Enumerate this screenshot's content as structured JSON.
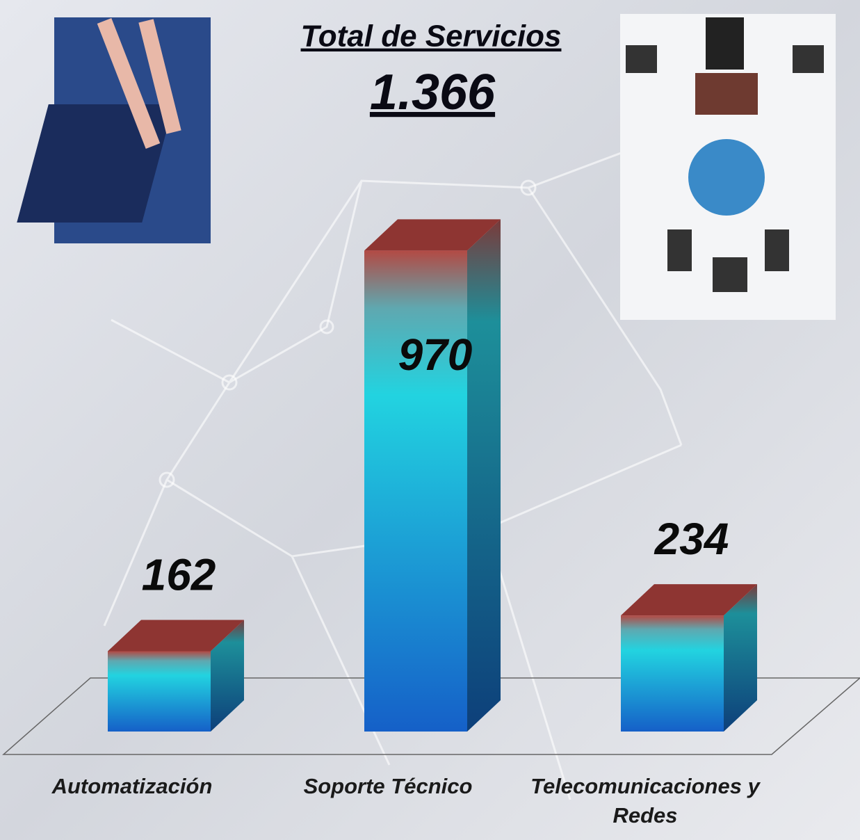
{
  "chart_data": {
    "type": "bar3d",
    "title": "Total de Servicios",
    "subtitle": "1.366",
    "categories": [
      "Automatización",
      "Soporte Técnico",
      "Telecomunicaciones y Redes"
    ],
    "values": [
      162,
      970,
      234
    ]
  }
}
